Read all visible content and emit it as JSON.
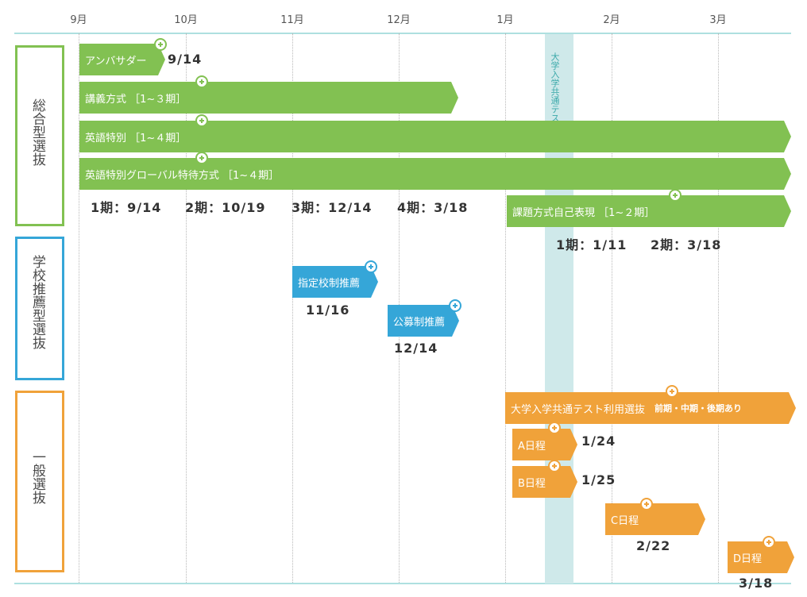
{
  "months": [
    "9月",
    "10月",
    "11月",
    "12月",
    "1月",
    "2月",
    "3月"
  ],
  "exam_band_label": "大学入学共通テスト",
  "categories": {
    "sogo": "総合型選抜",
    "gakko": "学校推薦型選抜",
    "ippan": "一般選抜"
  },
  "bars": {
    "ambassador": "アンバサダー",
    "kogi": "講義方式 ［1~３期］",
    "eigo": "英語特別 ［1~４期］",
    "global": "英語特別グローバル特待方式 ［1~４期］",
    "kadai": "課題方式自己表現 ［1~２期］",
    "shitei": "指定校制推薦",
    "kobo": "公募制推薦",
    "kyotsu_main": "大学入学共通テスト利用選抜",
    "kyotsu_note": "前期・中期・後期あり",
    "a": "A日程",
    "b": "B日程",
    "c": "C日程",
    "d": "D日程"
  },
  "dates": {
    "ambassador": "9/14",
    "p1": "1期：9/14",
    "p2": "2期：10/19",
    "p3": "3期：12/14",
    "p4": "4期：3/18",
    "k1": "1期：1/11",
    "k2": "2期：3/18",
    "shitei": "11/16",
    "kobo": "12/14",
    "a": "1/24",
    "b": "1/25",
    "c": "2/22",
    "d": "3/18"
  },
  "colors": {
    "green": "#82c152",
    "blue": "#35a6d8",
    "orange": "#f0a23a",
    "band": "#cfe9ea",
    "rule": "#aee0e0"
  },
  "icons": [
    "plus-circle-icon"
  ]
}
